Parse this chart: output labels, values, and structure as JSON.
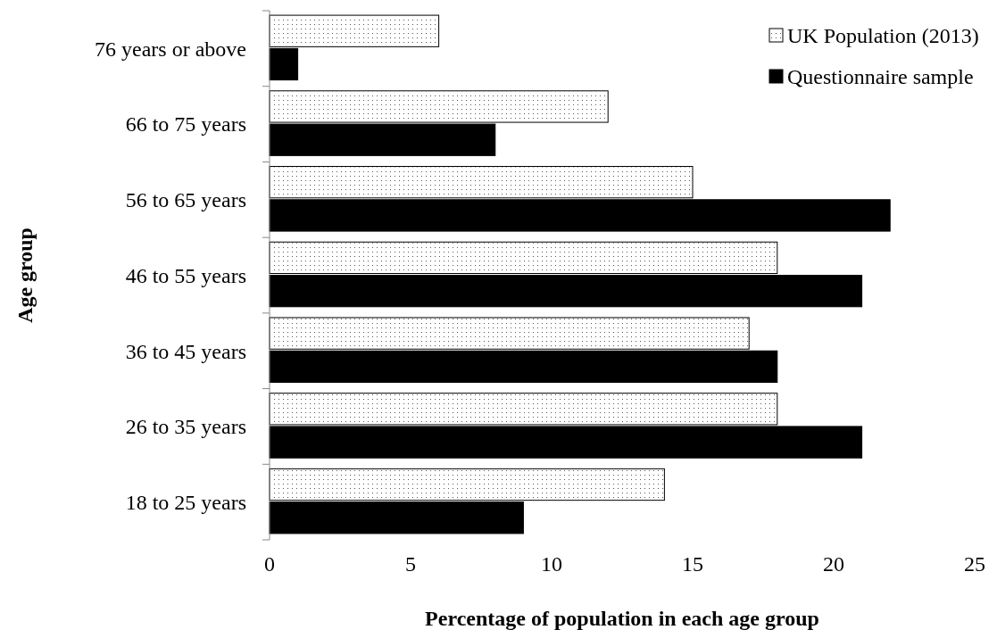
{
  "chart_data": {
    "type": "bar",
    "orientation": "horizontal",
    "xlabel": "Percentage of population in each age group",
    "ylabel": "Age group",
    "categories": [
      "76 years or above",
      "66 to 75 years",
      "56 to 65 years",
      "46 to 55 years",
      "36 to 45 years",
      "26 to 35 years",
      "18 to 25 years"
    ],
    "series": [
      {
        "name": "UK Population (2013)",
        "color": "#ffffff",
        "values": [
          6,
          12,
          15,
          18,
          17,
          18,
          14
        ]
      },
      {
        "name": "Questionnaire sample",
        "color": "#000000",
        "values": [
          1,
          8,
          22,
          21,
          18,
          21,
          9
        ]
      }
    ],
    "xlim": [
      0,
      25
    ],
    "xticks": [
      0,
      5,
      10,
      15,
      20,
      25
    ],
    "legend": "top right",
    "grid": false
  }
}
